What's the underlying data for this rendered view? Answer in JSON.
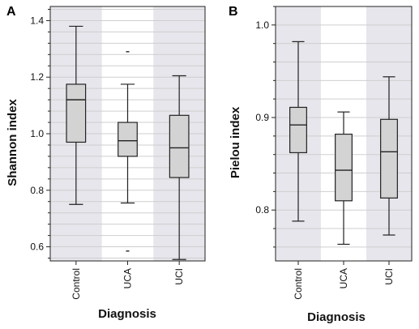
{
  "chart_data": [
    {
      "panel": "A",
      "type": "box",
      "xlabel": "Diagnosis",
      "ylabel": "Shannon index",
      "categories": [
        "Control",
        "UCA",
        "UCI"
      ],
      "ylim": [
        0.55,
        1.45
      ],
      "yticks": [
        "0.6",
        "0.8",
        "1.0",
        "1.2",
        "1.4"
      ],
      "boxes": [
        {
          "category": "Control",
          "whisker_low": 0.75,
          "q1": 0.97,
          "median": 1.12,
          "q3": 1.175,
          "whisker_high": 1.38,
          "outliers": []
        },
        {
          "category": "UCA",
          "whisker_low": 0.755,
          "q1": 0.92,
          "median": 0.975,
          "q3": 1.04,
          "whisker_high": 1.175,
          "outliers": [
            1.29,
            0.585
          ]
        },
        {
          "category": "UCI",
          "whisker_low": 0.555,
          "q1": 0.845,
          "median": 0.95,
          "q3": 1.065,
          "whisker_high": 1.205,
          "outliers": []
        }
      ],
      "shaded_bands": [
        "Control",
        "UCI"
      ],
      "grid": true
    },
    {
      "panel": "B",
      "type": "box",
      "xlabel": "Diagnosis",
      "ylabel": "Pielou index",
      "categories": [
        "Control",
        "UCA",
        "UCI"
      ],
      "ylim": [
        0.745,
        1.02
      ],
      "yticks": [
        "0.8",
        "0.9",
        "1.0"
      ],
      "boxes": [
        {
          "category": "Control",
          "whisker_low": 0.788,
          "q1": 0.862,
          "median": 0.892,
          "q3": 0.911,
          "whisker_high": 0.982,
          "outliers": []
        },
        {
          "category": "UCA",
          "whisker_low": 0.763,
          "q1": 0.81,
          "median": 0.843,
          "q3": 0.882,
          "whisker_high": 0.906,
          "outliers": []
        },
        {
          "category": "UCI",
          "whisker_low": 0.773,
          "q1": 0.813,
          "median": 0.863,
          "q3": 0.898,
          "whisker_high": 0.944,
          "outliers": []
        }
      ],
      "shaded_bands": [
        "Control",
        "UCI"
      ],
      "grid": true
    }
  ],
  "colors": {
    "band": "#e6e6ec",
    "box_fill": "#d3d3d3",
    "grid": "#cfcfcf",
    "line": "#222222"
  }
}
